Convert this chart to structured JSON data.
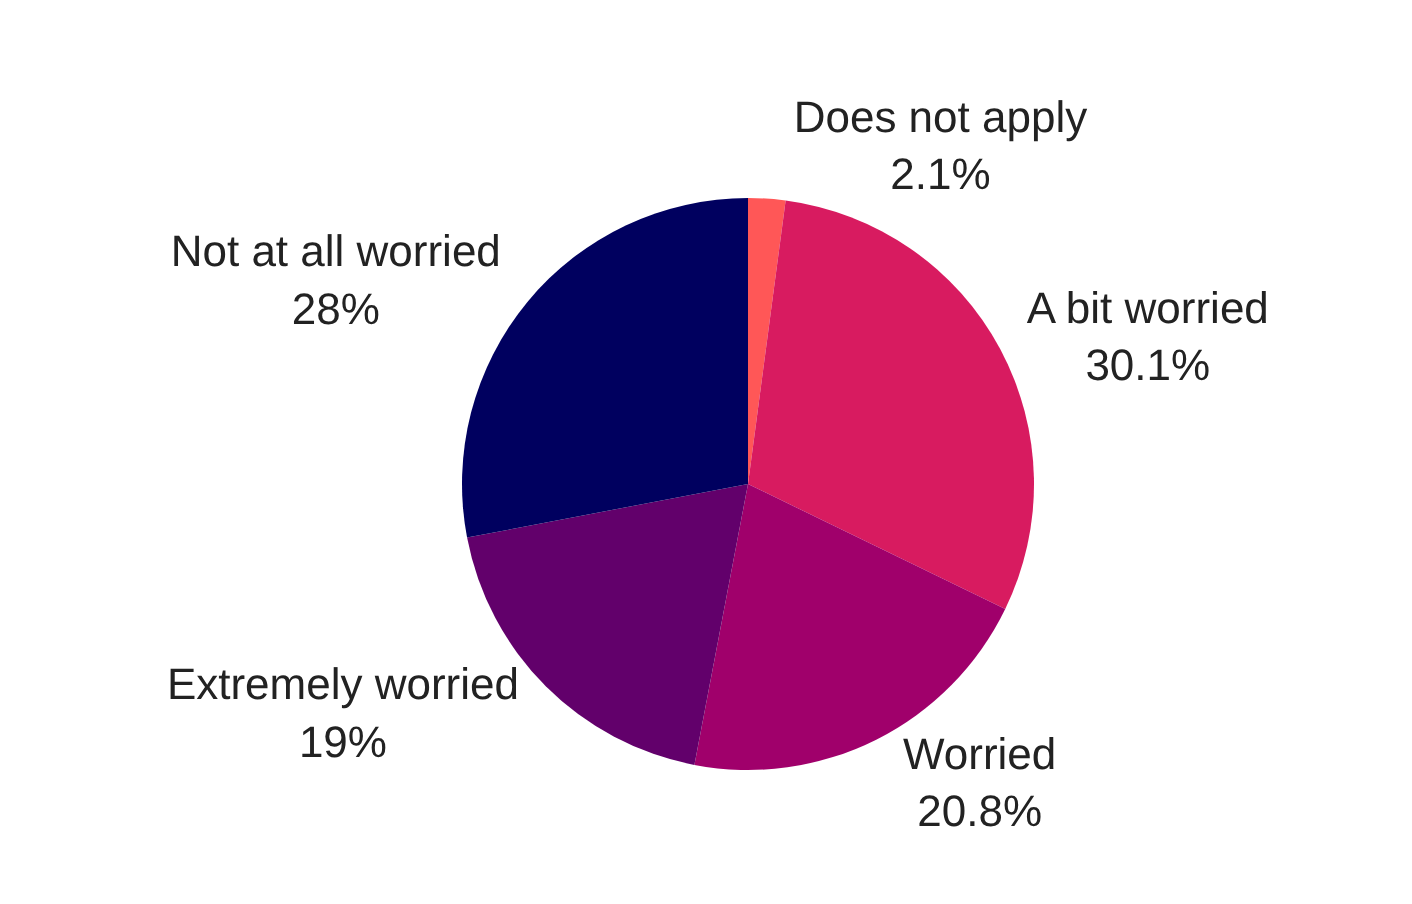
{
  "chart_data": {
    "type": "pie",
    "categories": [
      "Does not apply",
      "A bit worried",
      "Worried",
      "Extremely worried",
      "Not at all worried"
    ],
    "values": [
      2.1,
      30.1,
      20.8,
      19,
      28
    ],
    "value_labels": [
      "2.1%",
      "30.1%",
      "20.8%",
      "19%",
      "28%"
    ],
    "colors": [
      "#ff5757",
      "#d81b60",
      "#a0006b",
      "#62006b",
      "#00005f"
    ],
    "legend": false
  }
}
